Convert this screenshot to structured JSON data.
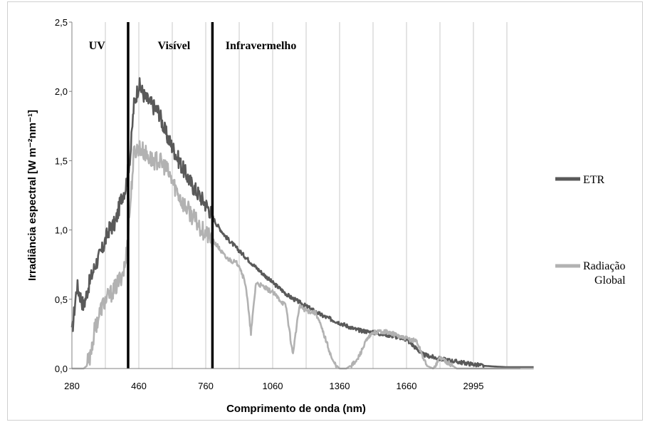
{
  "chart_data": {
    "type": "line",
    "xlabel": "Comprimento de onda (nm)",
    "ylabel": "Irradiância espectral [W m⁻²nm⁻¹]",
    "ylim": [
      0,
      2.5
    ],
    "ytick_labels": [
      "0,0",
      "0,5",
      "1,0",
      "1,5",
      "2,0",
      "2,5"
    ],
    "yticks": [
      0,
      0.5,
      1.0,
      1.5,
      2.0,
      2.5
    ],
    "x_categories": [
      "280",
      "460",
      "760",
      "1060",
      "1360",
      "1660",
      "2995"
    ],
    "xtick_labels": [
      "280",
      "460",
      "760",
      "1060",
      "1360",
      "1660",
      "2995"
    ],
    "regions": [
      "UV",
      "Visível",
      "Infravermelho"
    ],
    "region_boundaries_index": [
      1.68,
      4.2
    ],
    "grid": "vertical",
    "legend_position": "right",
    "series": [
      {
        "name": "ETR",
        "color": "#595959",
        "x_index": [
          0,
          0.15,
          0.35,
          0.5,
          0.7,
          0.9,
          1.1,
          1.3,
          1.5,
          1.6,
          1.75,
          1.85,
          2.0,
          2.2,
          2.4,
          2.6,
          2.8,
          3.0,
          3.3,
          3.6,
          3.9,
          4.1,
          4.3,
          4.6,
          5.0,
          5.5,
          6.0,
          6.5,
          7.0,
          7.5,
          8.0,
          8.5,
          9.0,
          9.5,
          10.0,
          10.5,
          11.0,
          11.5,
          12.0,
          12.3,
          12.6,
          13.0,
          13.5,
          13.8
        ],
        "values": [
          0.25,
          0.6,
          0.45,
          0.6,
          0.75,
          0.85,
          1.0,
          1.05,
          1.25,
          1.3,
          1.55,
          1.9,
          2.05,
          1.95,
          1.9,
          1.85,
          1.7,
          1.6,
          1.45,
          1.32,
          1.22,
          1.15,
          1.05,
          0.95,
          0.85,
          0.73,
          0.62,
          0.52,
          0.45,
          0.38,
          0.33,
          0.28,
          0.26,
          0.24,
          0.21,
          0.1,
          0.07,
          0.05,
          0.03,
          0.02,
          0.015,
          0.01,
          0.01,
          0.01
        ]
      },
      {
        "name": "Radiação Global",
        "color": "#b2b2b2",
        "x_index": [
          0,
          0.35,
          0.45,
          0.55,
          0.7,
          0.9,
          1.1,
          1.3,
          1.5,
          1.6,
          1.75,
          1.85,
          2.0,
          2.2,
          2.4,
          2.6,
          2.8,
          3.0,
          3.3,
          3.6,
          3.9,
          4.1,
          4.3,
          4.6,
          5.0,
          5.2,
          5.35,
          5.5,
          6.0,
          6.4,
          6.6,
          6.8,
          7.0,
          7.3,
          7.6,
          7.8,
          8.0,
          8.2,
          8.5,
          8.8,
          9.0,
          9.3,
          9.6,
          9.9,
          10.3,
          10.6,
          10.8,
          11.0,
          11.2,
          11.5,
          12.0,
          12.5,
          13.0,
          13.8
        ],
        "values": [
          0,
          0,
          0.02,
          0.1,
          0.3,
          0.45,
          0.52,
          0.58,
          0.68,
          0.75,
          1.2,
          1.55,
          1.6,
          1.55,
          1.5,
          1.5,
          1.45,
          1.35,
          1.2,
          1.1,
          1.0,
          0.95,
          0.9,
          0.8,
          0.75,
          0.6,
          0.25,
          0.62,
          0.55,
          0.45,
          0.1,
          0.45,
          0.42,
          0.4,
          0.2,
          0.05,
          0.0,
          0.0,
          0.05,
          0.2,
          0.26,
          0.27,
          0.25,
          0.22,
          0.2,
          0.02,
          0.0,
          0.08,
          0.05,
          0.0,
          0.0,
          0.0,
          0.0,
          0.0
        ]
      }
    ]
  }
}
